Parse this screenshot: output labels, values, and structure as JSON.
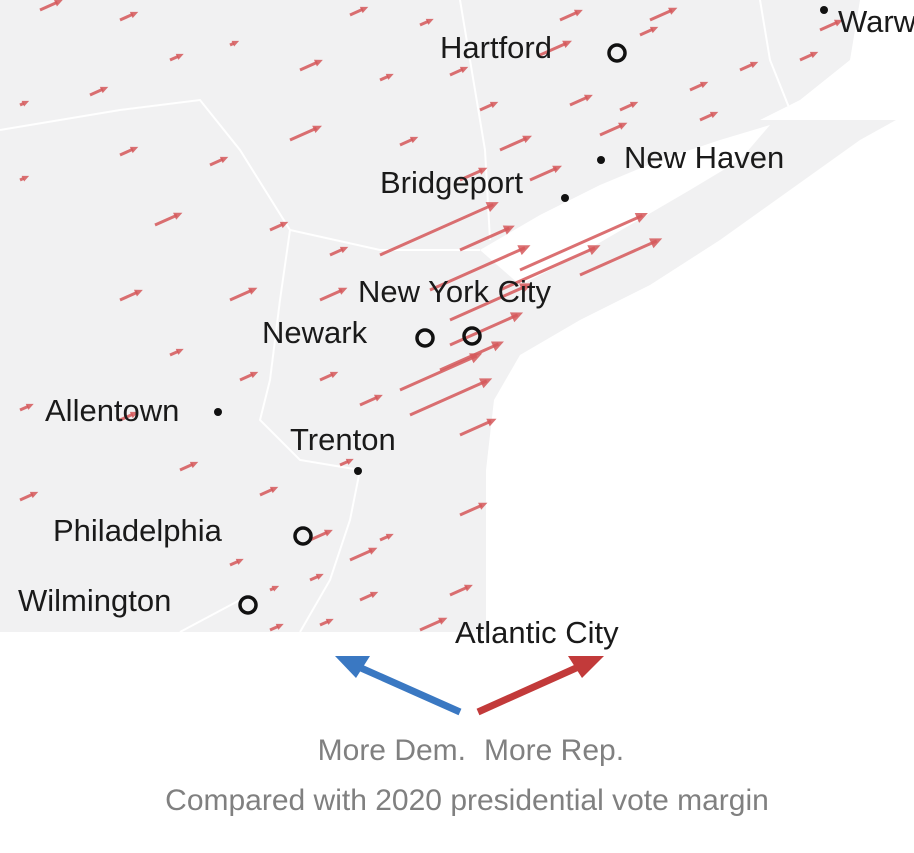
{
  "map": {
    "cities": [
      {
        "label": "Hartford"
      },
      {
        "label": "Warw"
      },
      {
        "label": "New Haven"
      },
      {
        "label": "Bridgeport"
      },
      {
        "label": "New York City"
      },
      {
        "label": "Newark"
      },
      {
        "label": "Allentown"
      },
      {
        "label": "Trenton"
      },
      {
        "label": "Philadelphia"
      },
      {
        "label": "Wilmington"
      },
      {
        "label": "Atlantic City"
      }
    ]
  },
  "legend": {
    "dem": "More Dem.",
    "rep": "More Rep.",
    "caption": "Compared with 2020 presidential vote margin"
  }
}
